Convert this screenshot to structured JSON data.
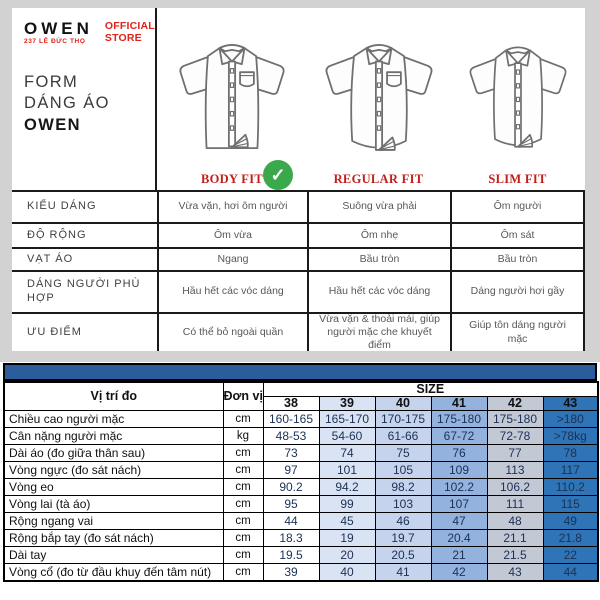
{
  "brand": {
    "logo_text": "OWEN",
    "logo_sub": "237 LÊ ĐỨC THỌ",
    "store_badge_line1": "OFFICIAL",
    "store_badge_line2": "STORE",
    "title_line1": "FORM",
    "title_line2": "DÁNG ÁO",
    "title_line3": "OWEN",
    "accent_red": "#e02318"
  },
  "fits": {
    "labels": [
      "BODY FIT",
      "REGULAR FIT",
      "SLIM FIT"
    ],
    "selected_index": 0,
    "label_color": "#c01f1a",
    "check_color": "#3aa94b",
    "check_icon": "✓"
  },
  "spec_table": {
    "rows": [
      {
        "label": "KIỂU DÁNG",
        "values": [
          "Vừa vặn, hơi ôm người",
          "Suông vừa phải",
          "Ôm người"
        ]
      },
      {
        "label": "ĐỘ RỘNG",
        "values": [
          "Ôm vừa",
          "Ôm nhẹ",
          "Ôm sát"
        ]
      },
      {
        "label": "VẠT ÁO",
        "values": [
          "Ngang",
          "Bầu tròn",
          "Bầu tròn"
        ]
      },
      {
        "label": "DÁNG NGƯỜI PHÙ HỢP",
        "values": [
          "Hầu hết các vóc dáng",
          "Hầu hết các vóc dáng",
          "Dáng người hơi gầy"
        ]
      },
      {
        "label": "ƯU ĐIỂM",
        "values": [
          "Có thể bỏ ngoài quần",
          "Vừa vặn & thoải mái, giúp người mặc che khuyết điểm",
          "Giúp tôn dáng người mặc"
        ]
      }
    ]
  },
  "size_table": {
    "corner_label": "Vị trí đo",
    "unit_label": "Đơn vị",
    "size_group_label": "SIZE",
    "sizes": [
      "38",
      "39",
      "40",
      "41",
      "42",
      "43"
    ],
    "size_col_colors": [
      "#ffffff",
      "#dae3f3",
      "#c5d3ec",
      "#93b3de",
      "#c3c9d4",
      "#2e74b6"
    ],
    "band_color": "#2b5c9b",
    "rows": [
      {
        "label": "Chiều cao người mặc",
        "unit": "cm",
        "values": [
          "160-165",
          "165-170",
          "170-175",
          "175-180",
          "175-180",
          ">180"
        ]
      },
      {
        "label": "Cân nặng người mặc",
        "unit": "kg",
        "values": [
          "48-53",
          "54-60",
          "61-66",
          "67-72",
          "72-78",
          ">78kg"
        ]
      },
      {
        "label": "Dài áo (đo giữa thân sau)",
        "unit": "cm",
        "values": [
          "73",
          "74",
          "75",
          "76",
          "77",
          "78"
        ]
      },
      {
        "label": "Vòng ngực (đo sát nách)",
        "unit": "cm",
        "values": [
          "97",
          "101",
          "105",
          "109",
          "113",
          "117"
        ]
      },
      {
        "label": "Vòng eo",
        "unit": "cm",
        "values": [
          "90.2",
          "94.2",
          "98.2",
          "102.2",
          "106.2",
          "110.2"
        ]
      },
      {
        "label": "Vòng lai (tà áo)",
        "unit": "cm",
        "values": [
          "95",
          "99",
          "103",
          "107",
          "111",
          "115"
        ]
      },
      {
        "label": "Rộng ngang vai",
        "unit": "cm",
        "values": [
          "44",
          "45",
          "46",
          "47",
          "48",
          "49"
        ]
      },
      {
        "label": "Rộng bắp tay (đo sát nách)",
        "unit": "cm",
        "values": [
          "18.3",
          "19",
          "19.7",
          "20.4",
          "21.1",
          "21.8"
        ]
      },
      {
        "label": "Dài tay",
        "unit": "cm",
        "values": [
          "19.5",
          "20",
          "20.5",
          "21",
          "21.5",
          "22"
        ]
      },
      {
        "label": "Vòng cổ (đo từ đầu khuy đến tâm nút)",
        "unit": "cm",
        "values": [
          "39",
          "40",
          "41",
          "42",
          "43",
          "44"
        ]
      }
    ]
  }
}
